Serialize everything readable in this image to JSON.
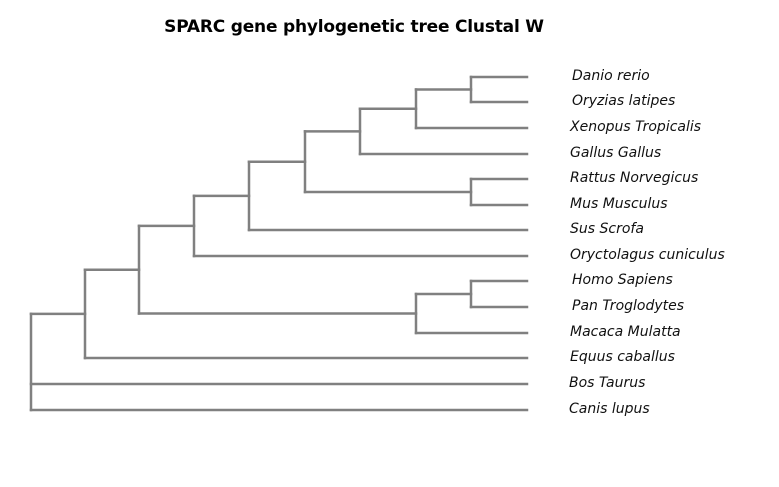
{
  "title": "SPARC gene phylogenetic tree Clustal W",
  "taxa": [
    "Danio rerio",
    "Oryzias latipes",
    "Xenopus Tropicalis",
    "Gallus Gallus",
    "Rattus Norvegicus",
    "Mus Musculus",
    "Sus Scrofa",
    "Oryctolagus cuniculus",
    "Homo Sapiens",
    "Pan Troglodytes",
    "Macaca Mulatta",
    "Equus caballus",
    "Bos Taurus",
    "Canis lupus"
  ],
  "tree": {
    "topology": "((((((((((Danio rerio,Oryzias latipes),Xenopus Tropicalis),Gallus Gallus),(Rattus Norvegicus,Mus Musculus)),Sus Scrofa),Oryctolagus cuniculus),((Homo Sapiens,Pan Troglodytes),Macaca Mulatta)),Equus caballus),Bos Taurus),Canis lupus)",
    "branch_color": "#808080"
  }
}
